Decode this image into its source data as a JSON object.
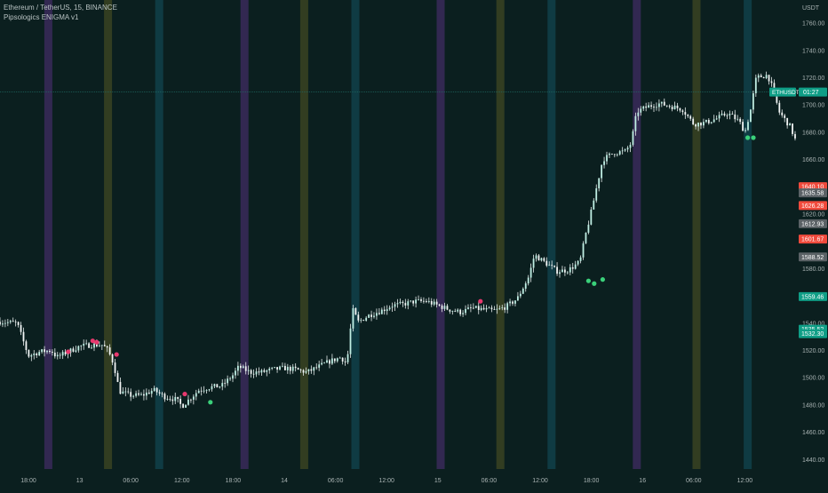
{
  "header": {
    "symbol_title": "Ethereum / TetherUS, 15, BINANCE",
    "indicator": "Pipsologics ENIGMA v1"
  },
  "colors": {
    "background": "#0b1f1f",
    "session_purple": "#3a2a5a",
    "session_olive": "#3a4322",
    "session_teal": "#10414a",
    "candle": "#e6ecec",
    "dot_red": "#e8386e",
    "dot_green": "#3ad07a",
    "last_price_line": "#1e6a62",
    "tag_red": "#f04a3c",
    "tag_gray": "#5b6266",
    "tag_teal": "#0f9e86",
    "axis_text": "#a9b3b3"
  },
  "chart_data": {
    "type": "candlestick",
    "ylim": [
      1433,
      1777
    ],
    "y_unit": "USDT",
    "y_ticks": [
      1440,
      1460,
      1480,
      1500,
      1520,
      1540,
      1560,
      1580,
      1600,
      1620,
      1640,
      1660,
      1680,
      1700,
      1720,
      1740,
      1760
    ],
    "x_tick_labels": [
      "18:00",
      "13",
      "06:00",
      "12:00",
      "18:00",
      "14",
      "06:00",
      "12:00",
      "15",
      "06:00",
      "12:00",
      "18:00",
      "16",
      "06:00",
      "12:00"
    ],
    "x_tick_index": [
      5,
      14,
      23,
      32,
      41,
      50,
      59,
      68,
      77,
      86,
      95,
      104,
      113,
      122,
      131
    ],
    "bar_count": 136,
    "session_bands": [
      {
        "index": 8.5,
        "color": "purple"
      },
      {
        "index": 19,
        "color": "olive"
      },
      {
        "index": 28,
        "color": "teal"
      },
      {
        "index": 43,
        "color": "purple"
      },
      {
        "index": 53.5,
        "color": "olive"
      },
      {
        "index": 62.5,
        "color": "teal"
      },
      {
        "index": 77.5,
        "color": "purple"
      },
      {
        "index": 88,
        "color": "olive"
      },
      {
        "index": 97,
        "color": "teal"
      },
      {
        "index": 112,
        "color": "purple"
      },
      {
        "index": 122.5,
        "color": "olive"
      },
      {
        "index": 131.5,
        "color": "teal"
      }
    ],
    "price_path": [
      [
        0,
        1541
      ],
      [
        3,
        1540
      ],
      [
        4,
        1528
      ],
      [
        5,
        1516
      ],
      [
        7,
        1519
      ],
      [
        9,
        1520
      ],
      [
        10,
        1515
      ],
      [
        12,
        1519
      ],
      [
        14,
        1523
      ],
      [
        16,
        1524
      ],
      [
        18,
        1524
      ],
      [
        19,
        1520
      ],
      [
        20,
        1510
      ],
      [
        21,
        1490
      ],
      [
        23,
        1487
      ],
      [
        25,
        1487
      ],
      [
        27,
        1491
      ],
      [
        29,
        1486
      ],
      [
        31,
        1484
      ],
      [
        32,
        1479
      ],
      [
        33,
        1483
      ],
      [
        35,
        1491
      ],
      [
        37,
        1493
      ],
      [
        39,
        1494
      ],
      [
        41,
        1502
      ],
      [
        42,
        1508
      ],
      [
        44,
        1504
      ],
      [
        46,
        1504
      ],
      [
        48,
        1506
      ],
      [
        50,
        1507
      ],
      [
        52,
        1506
      ],
      [
        54,
        1504
      ],
      [
        56,
        1508
      ],
      [
        58,
        1512
      ],
      [
        60,
        1515
      ],
      [
        61,
        1510
      ],
      [
        62,
        1550
      ],
      [
        63,
        1541
      ],
      [
        65,
        1546
      ],
      [
        67,
        1549
      ],
      [
        69,
        1553
      ],
      [
        71,
        1554
      ],
      [
        73,
        1556
      ],
      [
        75,
        1556
      ],
      [
        77,
        1553
      ],
      [
        79,
        1550
      ],
      [
        81,
        1548
      ],
      [
        83,
        1551
      ],
      [
        85,
        1550
      ],
      [
        87,
        1549
      ],
      [
        89,
        1552
      ],
      [
        91,
        1558
      ],
      [
        93,
        1574
      ],
      [
        94,
        1590
      ],
      [
        96,
        1584
      ],
      [
        98,
        1578
      ],
      [
        100,
        1579
      ],
      [
        102,
        1585
      ],
      [
        103,
        1605
      ],
      [
        104,
        1622
      ],
      [
        106,
        1660
      ],
      [
        108,
        1665
      ],
      [
        110,
        1666
      ],
      [
        111,
        1672
      ],
      [
        112,
        1695
      ],
      [
        114,
        1699
      ],
      [
        116,
        1701
      ],
      [
        118,
        1699
      ],
      [
        120,
        1697
      ],
      [
        122,
        1686
      ],
      [
        124,
        1687
      ],
      [
        126,
        1690
      ],
      [
        128,
        1694
      ],
      [
        130,
        1688
      ],
      [
        131,
        1680
      ],
      [
        132,
        1696
      ],
      [
        133,
        1720
      ],
      [
        135,
        1722
      ],
      [
        136,
        1711
      ],
      [
        137,
        1695
      ],
      [
        139,
        1684
      ],
      [
        140,
        1673
      ]
    ],
    "signal_dots": [
      {
        "index": 12,
        "price": 1519,
        "color": "red"
      },
      {
        "index": 16.3,
        "price": 1527,
        "color": "red"
      },
      {
        "index": 17,
        "price": 1526,
        "color": "red"
      },
      {
        "index": 20.5,
        "price": 1517,
        "color": "red"
      },
      {
        "index": 32.5,
        "price": 1488,
        "color": "red"
      },
      {
        "index": 37,
        "price": 1482,
        "color": "green"
      },
      {
        "index": 84.5,
        "price": 1556,
        "color": "red"
      },
      {
        "index": 103.5,
        "price": 1571,
        "color": "green"
      },
      {
        "index": 104.5,
        "price": 1569,
        "color": "green"
      },
      {
        "index": 106,
        "price": 1572,
        "color": "green"
      },
      {
        "index": 131.5,
        "price": 1676,
        "color": "green"
      },
      {
        "index": 132.5,
        "price": 1676,
        "color": "green"
      }
    ],
    "price_tags": [
      {
        "price": 1640.1,
        "label": "1640.10",
        "color": "red"
      },
      {
        "price": 1635.58,
        "label": "1635.58",
        "color": "gray"
      },
      {
        "price": 1626.28,
        "label": "1626.28",
        "color": "red"
      },
      {
        "price": 1612.93,
        "label": "1612.93",
        "color": "gray"
      },
      {
        "price": 1601.67,
        "label": "1601.67",
        "color": "red"
      },
      {
        "price": 1588.52,
        "label": "1588.52",
        "color": "gray"
      },
      {
        "price": 1559.46,
        "label": "1559.46",
        "color": "teal"
      },
      {
        "price": 1535.52,
        "label": "1535.52",
        "color": "teal"
      },
      {
        "price": 1532.3,
        "label": "1532.30",
        "color": "teal"
      }
    ],
    "last_price": {
      "price": 1709.5,
      "symbol": "ETHUSDT",
      "countdown": "01:27"
    }
  }
}
